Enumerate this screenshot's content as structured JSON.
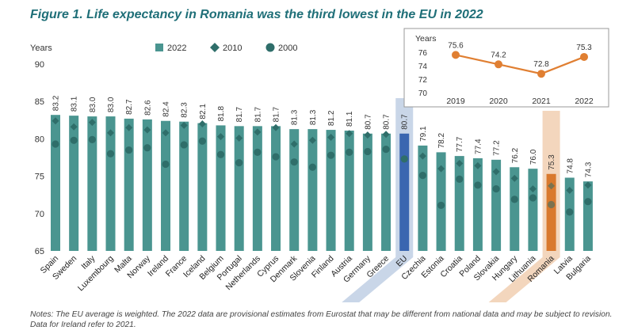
{
  "title": "Figure 1. Life expectancy in Romania was the third lowest in the EU in 2022",
  "notes": "Notes: The EU average is weighted. The 2022 data are provisional estimates from Eurostat that may be different from national data and may be subject to revision. Data for Ireland refer to 2021.",
  "colors": {
    "bar": "#4a9590",
    "eu": "#3a66b0",
    "romania": "#d9792e",
    "eu_band": "#c3d1e6",
    "romania_band": "#f2d2b6",
    "marker": "#2f6e6a",
    "axis_text": "#333333"
  },
  "chart_data": [
    {
      "type": "bar",
      "ylabel": "Years",
      "ylim": [
        65,
        90
      ],
      "yticks": [
        65,
        70,
        75,
        80,
        85,
        90
      ],
      "grid": false,
      "legend": [
        "2022",
        "2010",
        "2000"
      ],
      "categories": [
        "Spain",
        "Sweden",
        "Italy",
        "Luxembourg",
        "Malta",
        "Norway",
        "Ireland",
        "France",
        "Iceland",
        "Belgium",
        "Portugal",
        "Netherlands",
        "Cyprus",
        "Denmark",
        "Slovenia",
        "Finland",
        "Austria",
        "Germany",
        "Greece",
        "EU",
        "Czechia",
        "Estonia",
        "Croatia",
        "Poland",
        "Slovakia",
        "Hungary",
        "Lithuania",
        "Romania",
        "Latvia",
        "Bulgaria"
      ],
      "highlight": [
        "EU",
        "Romania"
      ],
      "series": [
        {
          "name": "2022",
          "marker": "bar",
          "values": [
            83.2,
            83.1,
            83.0,
            83.0,
            82.7,
            82.6,
            82.4,
            82.3,
            82.1,
            81.8,
            81.7,
            81.7,
            81.7,
            81.3,
            81.3,
            81.2,
            81.1,
            80.7,
            80.7,
            80.7,
            79.1,
            78.2,
            77.7,
            77.4,
            77.2,
            76.2,
            76.0,
            75.3,
            74.8,
            74.3
          ],
          "labels": [
            "83.2",
            "83.1",
            "83.0",
            "83.0",
            "82.7",
            "82.6",
            "82.4",
            "82.3",
            "82.1",
            "81.8",
            "81.7",
            "81.7",
            "81.7",
            "81.3",
            "81.3",
            "81.2",
            "81.1",
            "80.7",
            "80.7",
            "80.7",
            "79.1",
            "78.2",
            "77.7",
            "77.4",
            "77.2",
            "76.2",
            "76.0",
            "75.3",
            "74.8",
            "74.3"
          ]
        },
        {
          "name": "2010",
          "marker": "diamond",
          "values": [
            82.4,
            81.6,
            82.2,
            80.8,
            81.5,
            81.2,
            80.8,
            81.8,
            82.0,
            80.3,
            80.1,
            80.9,
            81.5,
            79.3,
            79.8,
            80.2,
            80.7,
            80.5,
            80.6,
            null,
            77.7,
            76.0,
            76.7,
            76.4,
            75.6,
            74.7,
            73.3,
            73.7,
            73.1,
            73.8
          ]
        },
        {
          "name": "2000",
          "marker": "circle",
          "values": [
            79.3,
            79.8,
            79.9,
            78.0,
            78.5,
            78.8,
            76.6,
            79.2,
            79.7,
            77.9,
            76.8,
            78.2,
            77.6,
            76.9,
            76.2,
            77.8,
            78.2,
            78.3,
            78.6,
            77.3,
            75.1,
            71.1,
            74.6,
            73.8,
            73.3,
            71.9,
            72.1,
            71.2,
            70.2,
            71.6
          ]
        }
      ]
    },
    {
      "type": "line",
      "ylabel": "Years",
      "x": [
        "2019",
        "2020",
        "2021",
        "2022"
      ],
      "values": [
        75.6,
        74.2,
        72.8,
        75.3
      ],
      "labels": [
        "75.6",
        "74.2",
        "72.8",
        "75.3"
      ],
      "ylim": [
        70,
        76
      ],
      "yticks": [
        70,
        72,
        74,
        76
      ],
      "color": "#e07f32"
    }
  ]
}
